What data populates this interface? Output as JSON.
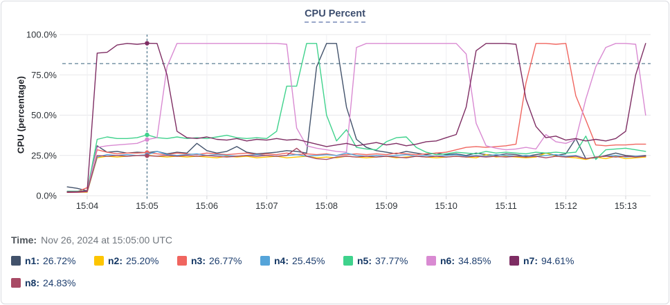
{
  "header": {
    "title": "CPU Percent"
  },
  "time_row": {
    "label": "Time:",
    "value": "Nov 26, 2024 at 15:05:00 UTC"
  },
  "legend": {
    "items": [
      {
        "label": "n1:",
        "value": "26.72%"
      },
      {
        "label": "n2:",
        "value": "25.20%"
      },
      {
        "label": "n3:",
        "value": "26.77%"
      },
      {
        "label": "n4:",
        "value": "25.45%"
      },
      {
        "label": "n5:",
        "value": "37.77%"
      },
      {
        "label": "n6:",
        "value": "34.85%"
      },
      {
        "label": "n7:",
        "value": "94.61%"
      },
      {
        "label": "n8:",
        "value": "24.83%"
      }
    ]
  },
  "chart_data": {
    "type": "line",
    "title": "CPU Percent",
    "xlabel": "",
    "ylabel": "CPU (percentage)",
    "ylim": [
      0,
      100
    ],
    "grid": true,
    "legend_position": "bottom",
    "y_ticks": [
      {
        "label": "0.0%",
        "value": 0
      },
      {
        "label": "25.0%",
        "value": 25
      },
      {
        "label": "50.0%",
        "value": 50
      },
      {
        "label": "75.0%",
        "value": 75
      },
      {
        "label": "100.0%",
        "value": 100
      }
    ],
    "x_range_s": [
      0,
      590
    ],
    "x_ticks": [
      {
        "label": "15:04",
        "offset_s": 25
      },
      {
        "label": "15:05",
        "offset_s": 85
      },
      {
        "label": "15:06",
        "offset_s": 145
      },
      {
        "label": "15:07",
        "offset_s": 205
      },
      {
        "label": "15:08",
        "offset_s": 265
      },
      {
        "label": "15:09",
        "offset_s": 325
      },
      {
        "label": "15:10",
        "offset_s": 385
      },
      {
        "label": "15:11",
        "offset_s": 445
      },
      {
        "label": "15:12",
        "offset_s": 505
      },
      {
        "label": "15:13",
        "offset_s": 565
      }
    ],
    "sample_start_offset_s": 5,
    "sample_step_s": 10,
    "threshold": {
      "value": 82,
      "style": "dashed"
    },
    "crosshair": {
      "offset_s": 85,
      "index": 8,
      "time_label": "15:05:00 UTC"
    },
    "crosshair_color": "#4a7188",
    "series": [
      {
        "name": "n1",
        "color": "#42526b",
        "legend_value": "26.72%",
        "values": [
          5.5,
          4.6,
          3,
          31,
          27,
          27.5,
          26.5,
          27,
          26.72,
          27.5,
          26,
          27,
          26.5,
          32.5,
          28,
          26.5,
          27.5,
          30.5,
          27,
          26,
          26.5,
          27,
          28,
          27.5,
          26.5,
          80,
          94.5,
          94.5,
          55,
          35,
          30,
          28,
          27,
          26,
          27.5,
          26.5,
          25.5,
          26.5,
          25.5,
          26,
          25,
          26.5,
          25.5,
          25,
          26,
          25.5,
          24.5,
          25.5,
          26.5,
          25,
          26,
          35.5,
          23,
          23.5,
          25,
          26.5,
          25,
          24.5,
          25
        ]
      },
      {
        "name": "n2",
        "color": "#fdc500",
        "legend_value": "25.20%",
        "values": [
          2,
          2,
          2.2,
          23.5,
          24.5,
          24,
          24.5,
          25,
          25.2,
          24.5,
          24,
          24.5,
          24,
          24.5,
          24,
          23.5,
          24.5,
          24,
          24.5,
          23.5,
          24,
          24.5,
          23.5,
          24,
          24.5,
          23.5,
          24,
          23.5,
          24.5,
          24,
          23.5,
          24,
          24.5,
          23.5,
          24,
          24.5,
          24,
          23.5,
          24,
          24.5,
          24,
          23.5,
          25.5,
          24,
          24.5,
          24,
          23.5,
          24,
          26.5,
          24.5,
          24,
          23.5,
          22.5,
          24,
          23,
          24.5,
          23,
          23.5,
          24
        ]
      },
      {
        "name": "n3",
        "color": "#f0655f",
        "legend_value": "26.77%",
        "values": [
          2.5,
          2.5,
          5,
          28.5,
          27,
          26,
          26.5,
          26.5,
          26.77,
          26,
          25.5,
          26.5,
          26,
          25.5,
          26.5,
          26,
          25.5,
          26,
          26.5,
          25.5,
          26,
          25.5,
          26.5,
          25.5,
          26,
          25.5,
          26,
          25,
          25.5,
          26,
          25.5,
          26,
          25.5,
          26.5,
          26,
          25.5,
          26,
          26.5,
          27,
          28.5,
          30,
          30.5,
          30,
          30.5,
          31,
          32,
          70,
          94.5,
          94.5,
          94,
          94.5,
          62,
          47,
          31.5,
          31,
          31.5,
          31.5,
          32,
          32
        ]
      },
      {
        "name": "n4",
        "color": "#55a4d9",
        "legend_value": "25.45%",
        "values": [
          2.2,
          2.3,
          2.5,
          24,
          25.5,
          25,
          25.5,
          25,
          25.45,
          27.5,
          25.5,
          25,
          25.5,
          26,
          25,
          25.5,
          25,
          24.5,
          25,
          25.5,
          25,
          24.5,
          25,
          25.5,
          24.5,
          25,
          25.5,
          25,
          26.5,
          25,
          24.5,
          25,
          24.5,
          25,
          25.5,
          24.5,
          25,
          24.5,
          25,
          25.5,
          24.5,
          25,
          24.5,
          25.5,
          25,
          24.5,
          25,
          24.5,
          25,
          25.5,
          24.5,
          25,
          23,
          24,
          24.5,
          25,
          24,
          24.5,
          24.5
        ]
      },
      {
        "name": "n5",
        "color": "#3fd28c",
        "legend_value": "37.77%",
        "values": [
          2.8,
          2.8,
          3,
          35,
          36.5,
          35.5,
          35.5,
          36,
          37.77,
          36,
          35.5,
          36.5,
          35.5,
          36,
          35.5,
          36.5,
          37.5,
          36,
          35.5,
          36,
          35.5,
          40,
          68,
          68,
          94.5,
          94.5,
          50,
          34,
          41,
          30,
          29,
          28.5,
          33.5,
          36,
          36.5,
          30,
          27,
          25.5,
          26,
          27,
          26.5,
          26,
          27.5,
          26.5,
          27,
          26.5,
          26,
          27,
          26.5,
          27,
          26.5,
          27,
          37,
          22.5,
          28.5,
          29,
          29.5,
          28.5,
          27.5
        ]
      },
      {
        "name": "n6",
        "color": "#d98ad2",
        "legend_value": "34.85%",
        "values": [
          2,
          2,
          2.5,
          30,
          31,
          31.5,
          32,
          32.5,
          34.85,
          36,
          80,
          94.5,
          94.5,
          94.5,
          94.5,
          94.5,
          94.5,
          94.5,
          94.5,
          94.5,
          94.5,
          94.5,
          94,
          42,
          31,
          29.5,
          28.5,
          27.5,
          27,
          92,
          94.5,
          94.5,
          94.5,
          94.5,
          94.5,
          94.5,
          94.5,
          94.5,
          94.5,
          94.5,
          88,
          45,
          31,
          29.5,
          28.5,
          29,
          30,
          29,
          38,
          33.5,
          32.5,
          35,
          60,
          80,
          92,
          94.5,
          94.5,
          94,
          50
        ]
      },
      {
        "name": "n7",
        "color": "#7e2d63",
        "legend_value": "94.61%",
        "values": [
          2.5,
          2.5,
          3,
          88.5,
          89,
          93.5,
          94.5,
          94,
          94.61,
          94.5,
          75,
          40,
          36,
          35.5,
          36.5,
          35,
          34.5,
          35.5,
          34,
          35,
          34.5,
          35.5,
          34.5,
          35,
          33.5,
          32,
          30.5,
          31.5,
          32.5,
          31,
          32,
          33,
          31.5,
          32.5,
          31,
          32,
          33.5,
          34,
          36,
          38,
          55,
          90,
          94.5,
          94.5,
          94.5,
          94,
          60,
          43,
          36,
          37,
          34.5,
          35.5,
          34,
          35,
          34,
          35.5,
          40,
          75,
          94.5
        ]
      },
      {
        "name": "n8",
        "color": "#a84a65",
        "legend_value": "24.83%",
        "values": [
          2,
          2.2,
          2.5,
          25,
          24.5,
          25,
          24.5,
          25,
          24.83,
          24.5,
          25,
          24.5,
          25,
          24.5,
          25,
          24.5,
          24,
          24.5,
          25,
          24.5,
          25,
          24.5,
          25,
          29.5,
          24.5,
          23,
          22.5,
          24,
          24.5,
          24,
          24.5,
          24,
          24.5,
          24,
          23.5,
          24.5,
          24,
          24.5,
          24,
          24.5,
          24,
          24.5,
          24,
          24.5,
          24,
          24.5,
          24,
          24.5,
          23.5,
          24.5,
          24,
          24.5,
          23,
          24,
          24.5,
          24,
          24.5,
          24,
          24.5
        ]
      }
    ]
  }
}
